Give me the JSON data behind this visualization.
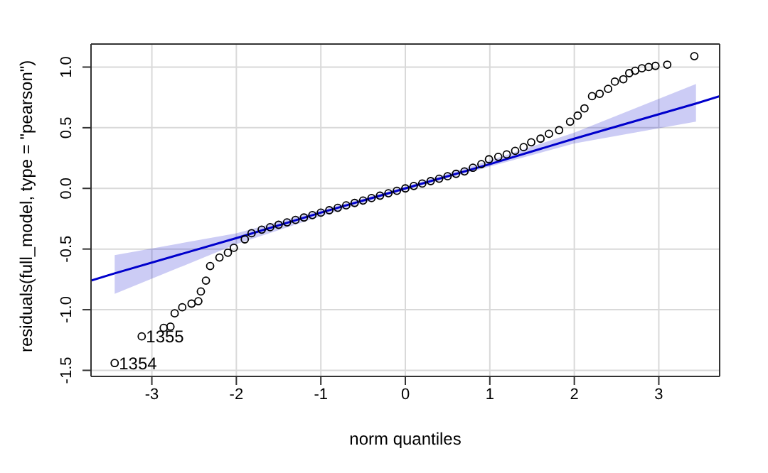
{
  "chart_data": {
    "type": "scatter",
    "xlabel": "norm quantiles",
    "ylabel": "residuals(full_model, type = \"pearson\")",
    "xlim": [
      -3.72,
      3.72
    ],
    "ylim": [
      -1.55,
      1.19
    ],
    "xticks": [
      -3,
      -2,
      -1,
      0,
      1,
      2,
      3
    ],
    "yticks": [
      -1.5,
      {
        "value": -1,
        "label": "-1.0"
      },
      -0.5,
      {
        "value": 0,
        "label": "0.0"
      },
      0.5,
      {
        "value": 1,
        "label": "1.0"
      }
    ],
    "grid": true,
    "legend": false,
    "series": [
      {
        "type": "line",
        "color": "#0000cc",
        "marker": "none",
        "line_style": "solid",
        "x": [
          -3.72,
          -3.44,
          -2,
          -1,
          0,
          1,
          2,
          3.44,
          3.72
        ],
        "values": [
          -0.76,
          -0.7,
          -0.41,
          -0.2,
          0,
          0.2,
          0.41,
          0.7,
          0.76
        ],
        "lower": [
          null,
          -0.87,
          -0.46,
          -0.23,
          -0.015,
          0.18,
          0.37,
          0.55,
          null
        ],
        "upper": [
          null,
          -0.55,
          -0.37,
          -0.18,
          0.015,
          0.23,
          0.46,
          0.86,
          null
        ]
      },
      {
        "type": "scatter",
        "color": "#000000",
        "marker": "circle",
        "x": [
          -3.44,
          -3.12,
          -2.86,
          -2.78,
          -2.73,
          -2.64,
          -2.53,
          -2.45,
          -2.42,
          -2.36,
          -2.31,
          -2.2,
          -2.1,
          -2.03,
          -1.9,
          -1.82,
          -1.7,
          -1.6,
          -1.5,
          -1.4,
          -1.3,
          -1.2,
          -1.1,
          -1,
          -0.9,
          -0.8,
          -0.7,
          -0.6,
          -0.5,
          -0.4,
          -0.3,
          -0.2,
          -0.1,
          0,
          0.1,
          0.2,
          0.3,
          0.4,
          0.5,
          0.6,
          0.7,
          0.8,
          0.9,
          0.99,
          1.1,
          1.2,
          1.3,
          1.4,
          1.49,
          1.6,
          1.7,
          1.82,
          1.95,
          2.04,
          2.12,
          2.21,
          2.3,
          2.4,
          2.48,
          2.58,
          2.65,
          2.72,
          2.8,
          2.88,
          2.96,
          3.1,
          3.42
        ],
        "values": [
          -1.44,
          -1.22,
          -1.15,
          -1.14,
          -1.03,
          -0.98,
          -0.95,
          -0.93,
          -0.85,
          -0.76,
          -0.64,
          -0.57,
          -0.53,
          -0.49,
          -0.42,
          -0.37,
          -0.34,
          -0.32,
          -0.3,
          -0.28,
          -0.26,
          -0.24,
          -0.22,
          -0.2,
          -0.18,
          -0.16,
          -0.14,
          -0.12,
          -0.1,
          -0.08,
          -0.06,
          -0.04,
          -0.02,
          0,
          0.02,
          0.04,
          0.06,
          0.08,
          0.1,
          0.12,
          0.14,
          0.17,
          0.2,
          0.24,
          0.26,
          0.28,
          0.31,
          0.34,
          0.38,
          0.41,
          0.45,
          0.48,
          0.55,
          0.6,
          0.66,
          0.76,
          0.78,
          0.82,
          0.88,
          0.9,
          0.95,
          0.97,
          0.99,
          1.0,
          1.01,
          1.02,
          1.09
        ]
      }
    ],
    "annotations": [
      {
        "text": "1354",
        "x": -3.44,
        "y": -1.44
      },
      {
        "text": "1355",
        "x": -3.12,
        "y": -1.22
      }
    ]
  }
}
